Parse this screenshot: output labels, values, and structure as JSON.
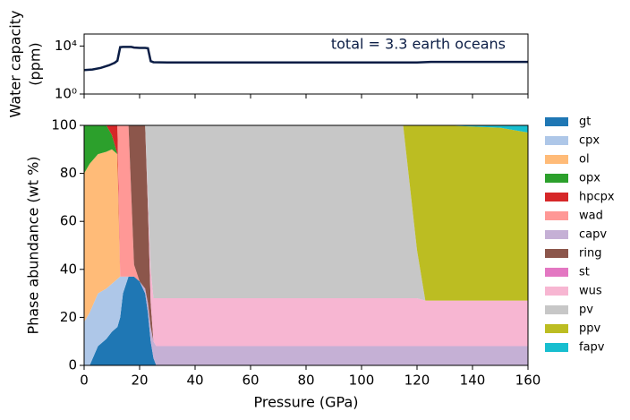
{
  "chart_data": [
    {
      "type": "line",
      "y_label": [
        "Water capacity",
        "(ppm)"
      ],
      "annotation": "total = 3.3 earth oceans",
      "log_y": true,
      "color": "#0b1d45",
      "x": [
        0,
        3,
        6,
        9,
        11,
        12,
        13,
        14,
        17,
        18,
        20,
        22,
        23,
        24,
        25,
        30,
        60,
        100,
        120,
        125,
        160
      ],
      "values": [
        100,
        110,
        150,
        250,
        400,
        600,
        8000,
        8500,
        8500,
        7500,
        7000,
        7000,
        6500,
        550,
        450,
        430,
        430,
        430,
        430,
        480,
        480
      ],
      "xlim": [
        0,
        160
      ],
      "xticks": [
        0,
        20,
        40,
        60,
        80,
        100,
        120,
        140,
        160
      ],
      "ylim": [
        1,
        100000
      ],
      "yticks": [
        {
          "value": 1,
          "label": "10⁰"
        },
        {
          "value": 10000,
          "label": "10⁴"
        }
      ]
    },
    {
      "type": "stacked_area",
      "x_label": "Pressure (GPa)",
      "y_label": "Phase abundance (wt %)",
      "legend": "right-outside",
      "x": [
        0,
        2,
        5,
        8,
        10,
        12,
        13,
        14,
        16,
        18,
        20,
        22,
        23,
        24,
        25,
        26,
        40,
        100,
        115,
        120,
        123,
        130,
        150,
        160
      ],
      "series": [
        {
          "name": "gt",
          "color": "#1f77b4",
          "values": [
            0,
            0,
            8,
            11,
            14,
            16,
            20,
            30,
            37,
            37,
            35,
            30,
            22,
            10,
            3,
            0,
            0,
            0,
            0,
            0,
            0,
            0,
            0,
            0
          ]
        },
        {
          "name": "cpx",
          "color": "#aec7e8",
          "values": [
            18,
            22,
            22,
            21,
            20,
            20,
            17,
            7,
            0,
            0,
            0,
            0,
            0,
            0,
            0,
            0,
            0,
            0,
            0,
            0,
            0,
            0,
            0,
            0
          ]
        },
        {
          "name": "ol",
          "color": "#ffbb78",
          "values": [
            62,
            62,
            58,
            57,
            56,
            52,
            0,
            0,
            0,
            0,
            0,
            0,
            0,
            0,
            0,
            0,
            0,
            0,
            0,
            0,
            0,
            0,
            0,
            0
          ]
        },
        {
          "name": "opx",
          "color": "#2ca02c",
          "values": [
            20,
            16,
            12,
            11,
            6,
            0,
            0,
            0,
            0,
            0,
            0,
            0,
            0,
            0,
            0,
            0,
            0,
            0,
            0,
            0,
            0,
            0,
            0,
            0
          ]
        },
        {
          "name": "hpcpx",
          "color": "#d62728",
          "values": [
            0,
            0,
            0,
            0,
            4,
            12,
            0,
            0,
            0,
            0,
            0,
            0,
            0,
            0,
            0,
            0,
            0,
            0,
            0,
            0,
            0,
            0,
            0,
            0
          ]
        },
        {
          "name": "wad",
          "color": "#ff9896",
          "values": [
            0,
            0,
            0,
            0,
            0,
            0,
            63,
            63,
            63,
            5,
            0,
            0,
            0,
            0,
            0,
            0,
            0,
            0,
            0,
            0,
            0,
            0,
            0,
            0
          ]
        },
        {
          "name": "capv",
          "color": "#c5b0d5",
          "values": [
            0,
            0,
            0,
            0,
            0,
            0,
            0,
            0,
            0,
            0,
            0,
            2,
            4,
            6,
            7,
            8,
            8,
            8,
            8,
            8,
            8,
            8,
            8,
            8
          ]
        },
        {
          "name": "ring",
          "color": "#8c564b",
          "values": [
            0,
            0,
            0,
            0,
            0,
            0,
            0,
            0,
            0,
            58,
            65,
            68,
            40,
            10,
            0,
            0,
            0,
            0,
            0,
            0,
            0,
            0,
            0,
            0
          ]
        },
        {
          "name": "st",
          "color": "#e377c2",
          "values": [
            0,
            0,
            0,
            0,
            0,
            0,
            0,
            0,
            0,
            0,
            0,
            0,
            0,
            0,
            0,
            0,
            0,
            0,
            0,
            0,
            0,
            0,
            0,
            0
          ]
        },
        {
          "name": "wus",
          "color": "#f7b6d2",
          "values": [
            0,
            0,
            0,
            0,
            0,
            0,
            0,
            0,
            0,
            0,
            0,
            0,
            4,
            14,
            18,
            20,
            20,
            20,
            20,
            20,
            19,
            19,
            19,
            19
          ]
        },
        {
          "name": "pv",
          "color": "#c7c7c7",
          "values": [
            0,
            0,
            0,
            0,
            0,
            0,
            0,
            0,
            0,
            0,
            0,
            0,
            30,
            60,
            72,
            72,
            72,
            72,
            72,
            20,
            0,
            0,
            0,
            0
          ]
        },
        {
          "name": "ppv",
          "color": "#bcbd22",
          "values": [
            0,
            0,
            0,
            0,
            0,
            0,
            0,
            0,
            0,
            0,
            0,
            0,
            0,
            0,
            0,
            0,
            0,
            0,
            0,
            52,
            73,
            73,
            72,
            70
          ]
        },
        {
          "name": "fapv",
          "color": "#17becf",
          "values": [
            0,
            0,
            0,
            0,
            0,
            0,
            0,
            0,
            0,
            0,
            0,
            0,
            0,
            0,
            0,
            0,
            0,
            0,
            0,
            0,
            0,
            0,
            1,
            3
          ]
        }
      ],
      "xlim": [
        0,
        160
      ],
      "xticks": [
        0,
        20,
        40,
        60,
        80,
        100,
        120,
        140,
        160
      ],
      "ylim": [
        0,
        100
      ],
      "yticks": [
        0,
        20,
        40,
        60,
        80,
        100
      ]
    }
  ]
}
